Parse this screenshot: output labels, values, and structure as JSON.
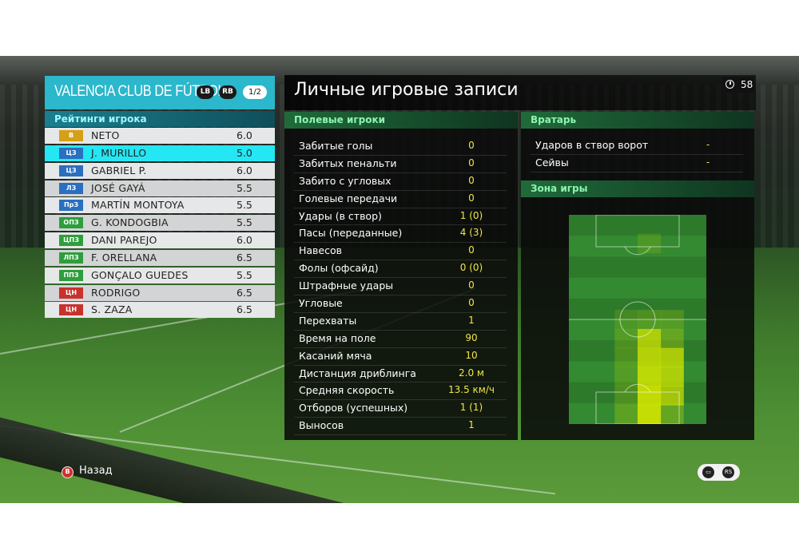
{
  "team": {
    "name": "VALENCIA CLUB DE FÚTBOL",
    "lb_label": "LB",
    "rb_label": "RB",
    "page_indicator": "1/2"
  },
  "ratings_title": "Рейтинги игрока",
  "players": [
    {
      "pos": "В",
      "pos_color": "#d4a017",
      "name": "NETO",
      "rating": "6.0"
    },
    {
      "pos": "ЦЗ",
      "pos_color": "#2a6fc0",
      "name": "J. MURILLO",
      "rating": "5.0",
      "selected": true
    },
    {
      "pos": "ЦЗ",
      "pos_color": "#2a6fc0",
      "name": "GABRIEL P.",
      "rating": "6.0"
    },
    {
      "pos": "ЛЗ",
      "pos_color": "#2a6fc0",
      "name": "JOSÉ GAYÁ",
      "rating": "5.5"
    },
    {
      "pos": "ПрЗ",
      "pos_color": "#2a6fc0",
      "name": "MARTÍN MONTOYA",
      "rating": "5.5"
    },
    {
      "pos": "ОПЗ",
      "pos_color": "#2e9e3c",
      "name": "G. KONDOGBIA",
      "rating": "5.5"
    },
    {
      "pos": "ЦПЗ",
      "pos_color": "#2e9e3c",
      "name": "DANI PAREJO",
      "rating": "6.0"
    },
    {
      "pos": "ЛПЗ",
      "pos_color": "#2e9e3c",
      "name": "F. ORELLANA",
      "rating": "6.5"
    },
    {
      "pos": "ППЗ",
      "pos_color": "#2e9e3c",
      "name": "GONÇALO GUEDES",
      "rating": "5.5"
    },
    {
      "pos": "ЦН",
      "pos_color": "#c8322c",
      "name": "RODRIGO",
      "rating": "6.5"
    },
    {
      "pos": "ЦН",
      "pos_color": "#c8322c",
      "name": "S. ZAZA",
      "rating": "6.5"
    }
  ],
  "page_title": "Личные игровые записи",
  "timer": "58",
  "field_players": {
    "title": "Полевые игроки",
    "stats": [
      {
        "label": "Забитые голы",
        "value": "0"
      },
      {
        "label": "Забитых пенальти",
        "value": "0"
      },
      {
        "label": "Забито с угловых",
        "value": "0"
      },
      {
        "label": "Голевые передачи",
        "value": "0"
      },
      {
        "label": "Удары (в створ)",
        "value": "1 (0)"
      },
      {
        "label": "Пасы (переданные)",
        "value": "4 (3)"
      },
      {
        "label": "Навесов",
        "value": "0"
      },
      {
        "label": "Фолы (офсайд)",
        "value": "0 (0)"
      },
      {
        "label": "Штрафные удары",
        "value": "0"
      },
      {
        "label": "Угловые",
        "value": "0"
      },
      {
        "label": "Перехваты",
        "value": "1"
      },
      {
        "label": "Время на поле",
        "value": "90"
      },
      {
        "label": "Касаний мяча",
        "value": "10"
      },
      {
        "label": "Дистанция дриблинга",
        "value": "2.0 м"
      },
      {
        "label": "Средняя скорость",
        "value": "13.5 км/ч"
      },
      {
        "label": "Отборов (успешных)",
        "value": "1 (1)"
      },
      {
        "label": "Выносов",
        "value": "1"
      }
    ]
  },
  "goalkeeper": {
    "title": "Вратарь",
    "stats": [
      {
        "label": "Ударов в створ ворот",
        "value": "-"
      },
      {
        "label": "Сейвы",
        "value": "-"
      }
    ]
  },
  "zone": {
    "title": "Зона игры",
    "heat_cols": 6,
    "heat_rows": 11,
    "heat_values": [
      0,
      0,
      0,
      0,
      0,
      0,
      0,
      0,
      0,
      0.15,
      0,
      0,
      0,
      0,
      0,
      0,
      0,
      0,
      0,
      0,
      0,
      0,
      0,
      0,
      0,
      0,
      0,
      0,
      0,
      0,
      0,
      0,
      0.15,
      0.2,
      0.2,
      0,
      0,
      0,
      0.2,
      0.75,
      0.3,
      0,
      0,
      0,
      0.2,
      0.8,
      0.75,
      0,
      0,
      0,
      0.2,
      0.85,
      0.75,
      0,
      0,
      0,
      0.2,
      0.9,
      0.7,
      0,
      0,
      0,
      0.25,
      0.9,
      0.3,
      0
    ],
    "colors": {
      "pitch_dark": "#2d7a2b",
      "pitch_light": "#348a30",
      "heat": "#d4e600"
    }
  },
  "controls": {
    "back_label": "Назад",
    "back_icon": "circle-b-button-icon",
    "chat_icon": "chat-bubble-icon",
    "stamina_icon": "rs-button-icon"
  }
}
